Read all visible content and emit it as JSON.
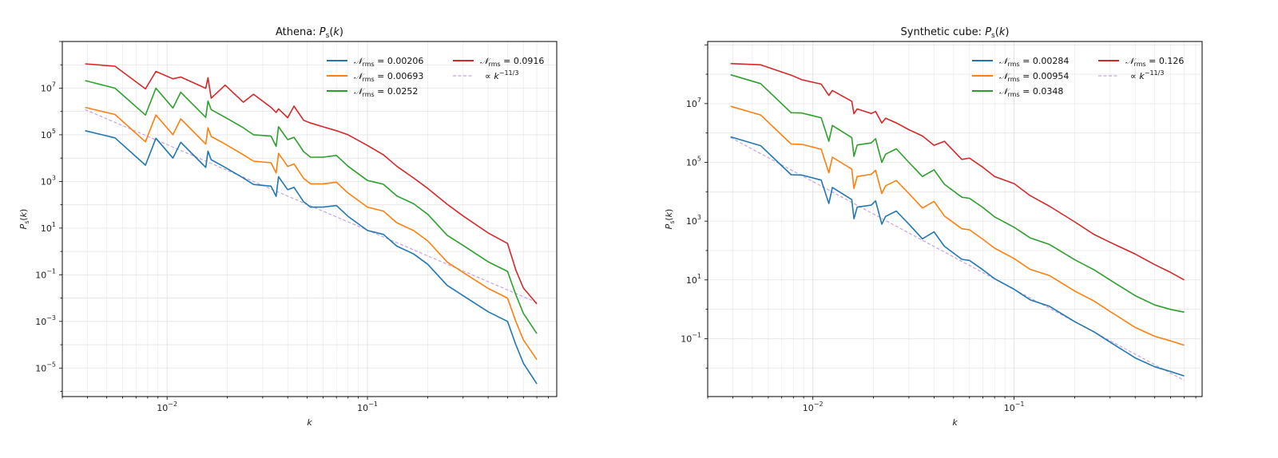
{
  "chart_data": [
    {
      "type": "line",
      "title": "Athena: Ps(k)",
      "xlabel": "k",
      "ylabel": "Ps(k)",
      "xscale": "log",
      "yscale": "log",
      "xlim": [
        0.003,
        0.88
      ],
      "ylim": [
        6e-07,
        1000000000.0
      ],
      "xticks": [
        {
          "value": 0.01,
          "label": "10^-2"
        },
        {
          "value": 0.1,
          "label": "10^-1"
        }
      ],
      "yticks": [
        {
          "value": 10000000.0,
          "label": "10^7"
        },
        {
          "value": 100000.0,
          "label": "10^5"
        },
        {
          "value": 1000.0,
          "label": "10^3"
        },
        {
          "value": 10,
          "label": "10^1"
        },
        {
          "value": 0.1,
          "label": "10^-1"
        },
        {
          "value": 0.001,
          "label": "10^-3"
        },
        {
          "value": 1e-05,
          "label": "10^-5"
        }
      ],
      "grid": true,
      "legend_position": "top-right",
      "k": [
        0.0039,
        0.0055,
        0.0078,
        0.0088,
        0.0107,
        0.0117,
        0.0156,
        0.016,
        0.0166,
        0.0195,
        0.024,
        0.027,
        0.033,
        0.035,
        0.036,
        0.04,
        0.043,
        0.048,
        0.052,
        0.06,
        0.07,
        0.08,
        0.1,
        0.12,
        0.14,
        0.17,
        0.2,
        0.25,
        0.3,
        0.4,
        0.5,
        0.55,
        0.6,
        0.7
      ],
      "series": [
        {
          "name": "𝒩rms = 0.00206",
          "color": "#1f77b4",
          "values": [
            150000.0,
            74000.0,
            5000.0,
            71000.0,
            10000.0,
            48000.0,
            4000.0,
            20000.0,
            8500.0,
            4000.0,
            1400.0,
            740,
            630,
            230,
            1600.0,
            440,
            560,
            135,
            79,
            79,
            93,
            32,
            7.9,
            5.4,
            1.7,
            0.78,
            0.28,
            0.035,
            0.0126,
            0.0026,
            0.001,
            0.0001,
            1.6e-05,
            2.1e-06
          ]
        },
        {
          "name": "𝒩rms = 0.00693",
          "color": "#ff7f0e",
          "values": [
            1500000.0,
            740000.0,
            50000.0,
            710000.0,
            100000.0,
            480000.0,
            40000.0,
            200000.0,
            85000.0,
            40000.0,
            14000.0,
            7400.0,
            6300.0,
            2300.0,
            16000.0,
            4400.0,
            5600.0,
            1350.0,
            790,
            790,
            930,
            320,
            79,
            54,
            17,
            7.8,
            2.8,
            0.35,
            0.126,
            0.026,
            0.01,
            0.001,
            0.00016,
            2.3e-05
          ]
        },
        {
          "name": "𝒩rms = 0.0252",
          "color": "#2ca02c",
          "values": [
            21000000.0,
            10000000.0,
            700000.0,
            10000000.0,
            1400000.0,
            6700000.0,
            560000.0,
            2800000.0,
            1200000.0,
            560000.0,
            200000.0,
            100000.0,
            88000.0,
            32000.0,
            220000.0,
            62000.0,
            78000.0,
            19000.0,
            11000.0,
            11000.0,
            13000.0,
            4500.0,
            1100.0,
            760,
            240,
            110,
            39,
            4.9,
            1.8,
            0.36,
            0.14,
            0.014,
            0.0022,
            0.0003
          ]
        },
        {
          "name": "𝒩rms = 0.0916",
          "color": "#d62728",
          "values": [
            110000000.0,
            87000000.0,
            9300000.0,
            52000000.0,
            25000000.0,
            30000000.0,
            9800000.0,
            28000000.0,
            3700000.0,
            13500000.0,
            2500000.0,
            5500000.0,
            1500000.0,
            910000.0,
            1300000.0,
            540000.0,
            1700000.0,
            420000.0,
            320000.0,
            220000.0,
            150000.0,
            100000.0,
            35000.0,
            14000.0,
            4500.0,
            1400.0,
            500,
            105,
            33,
            6.2,
            2.2,
            0.16,
            0.027,
            0.0056
          ]
        }
      ],
      "powerlaw": {
        "name": "∝ k^-11/3",
        "color": "#c5a3e0",
        "exponent": -3.6667,
        "k": [
          0.0039,
          0.7
        ],
        "values": [
          1200000.0,
          0.0065
        ]
      }
    },
    {
      "type": "line",
      "title": "Synthetic cube: Ps(k)",
      "xlabel": "k",
      "ylabel": "Ps(k)",
      "xscale": "log",
      "yscale": "log",
      "xlim": [
        0.003,
        0.86
      ],
      "ylim": [
        0.00107,
        1300000000.0
      ],
      "xticks": [
        {
          "value": 0.01,
          "label": "10^-2"
        },
        {
          "value": 0.1,
          "label": "10^-1"
        }
      ],
      "yticks": [
        {
          "value": 10000000.0,
          "label": "10^7"
        },
        {
          "value": 100000.0,
          "label": "10^5"
        },
        {
          "value": 1000.0,
          "label": "10^3"
        },
        {
          "value": 10,
          "label": "10^1"
        },
        {
          "value": 0.1,
          "label": "10^-1"
        }
      ],
      "grid": true,
      "legend_position": "top-right",
      "k": [
        0.0039,
        0.0055,
        0.0078,
        0.0088,
        0.011,
        0.012,
        0.0125,
        0.0156,
        0.016,
        0.0166,
        0.0195,
        0.0205,
        0.022,
        0.023,
        0.026,
        0.03,
        0.035,
        0.04,
        0.045,
        0.055,
        0.06,
        0.07,
        0.08,
        0.1,
        0.12,
        0.15,
        0.2,
        0.25,
        0.3,
        0.4,
        0.5,
        0.6,
        0.7
      ],
      "series": [
        {
          "name": "𝒩rms = 0.00284",
          "color": "#1f77b4",
          "values": [
            740000.0,
            370000.0,
            38000.0,
            37000.0,
            25000.0,
            4000.0,
            14000.0,
            5400.0,
            1200.0,
            3000.0,
            3500.0,
            4900.0,
            790,
            1450.0,
            2200.0,
            790,
            250,
            430,
            140,
            50,
            46,
            22,
            11,
            4.8,
            2.1,
            1.26,
            0.38,
            0.17,
            0.076,
            0.022,
            0.011,
            0.0076,
            0.0054
          ]
        },
        {
          "name": "𝒩rms = 0.00954",
          "color": "#ff7f0e",
          "values": [
            8100000.0,
            4100000.0,
            420000.0,
            410000.0,
            280000.0,
            44000.0,
            150000.0,
            59000.0,
            13000.0,
            33000.0,
            39000.0,
            54000.0,
            8700.0,
            16000.0,
            24000.0,
            8700.0,
            2800.0,
            4700.0,
            1500.0,
            550,
            510,
            240,
            120,
            53,
            23,
            14,
            4.2,
            1.9,
            0.84,
            0.24,
            0.12,
            0.084,
            0.06
          ]
        },
        {
          "name": "𝒩rms = 0.0348",
          "color": "#2ca02c",
          "values": [
            96000000.0,
            48000000.0,
            4900000.0,
            4800000.0,
            3300000.0,
            520000.0,
            1800000.0,
            700000.0,
            160000.0,
            390000.0,
            460000.0,
            640000.0,
            100000.0,
            190000.0,
            290000.0,
            100000.0,
            33000.0,
            56000.0,
            18000.0,
            6500.0,
            6000.0,
            2900.0,
            1400.0,
            620,
            270,
            160,
            49,
            22,
            9.9,
            2.9,
            1.4,
            0.99,
            0.8
          ]
        },
        {
          "name": "𝒩rms = 0.126",
          "color": "#d62728",
          "values": [
            230000000.0,
            210000000.0,
            93000000.0,
            65000000.0,
            46000000.0,
            19000000.0,
            28000000.0,
            12000000.0,
            4500000.0,
            6600000.0,
            4600000.0,
            5400000.0,
            2200000.0,
            3200000.0,
            2200000.0,
            1300000.0,
            790000.0,
            380000.0,
            520000.0,
            126000.0,
            140000.0,
            68000.0,
            33000.0,
            19000.0,
            7400.0,
            3200.0,
            950,
            350,
            190,
            76,
            33,
            18,
            10
          ]
        }
      ],
      "powerlaw": {
        "name": "∝ k^-11/3",
        "color": "#c5a3e0",
        "exponent": -3.6667,
        "k": [
          0.0039,
          0.7
        ],
        "values": [
          700000.0,
          0.0038
        ]
      }
    }
  ]
}
